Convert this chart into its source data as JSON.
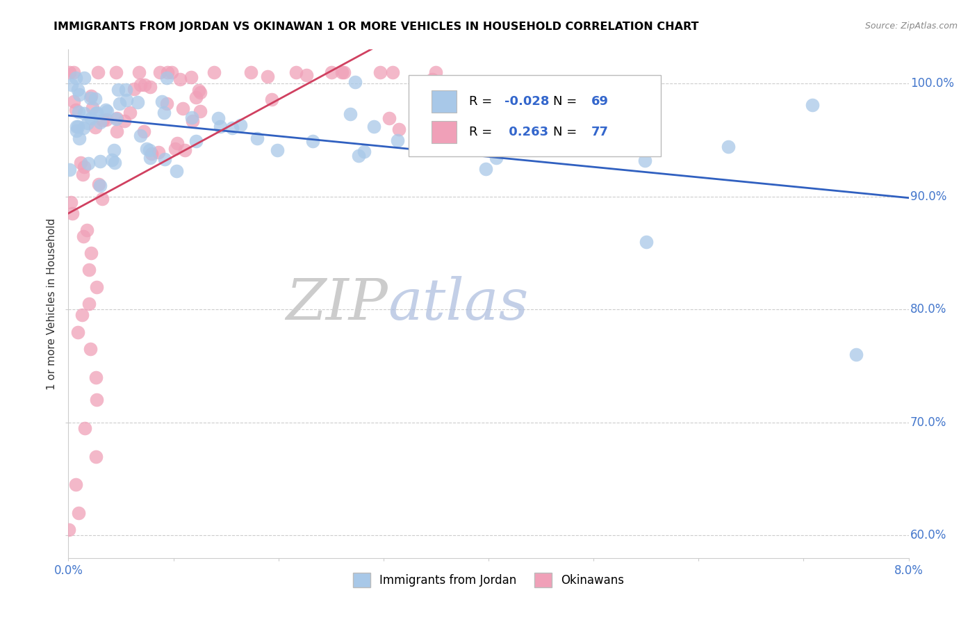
{
  "title": "IMMIGRANTS FROM JORDAN VS OKINAWAN 1 OR MORE VEHICLES IN HOUSEHOLD CORRELATION CHART",
  "source": "Source: ZipAtlas.com",
  "ylabel": "1 or more Vehicles in Household",
  "legend_jordan": "Immigrants from Jordan",
  "legend_okinawan": "Okinawans",
  "R_jordan": -0.028,
  "N_jordan": 69,
  "R_okinawan": 0.263,
  "N_okinawan": 77,
  "jordan_color": "#a8c8e8",
  "okinawan_color": "#f0a0b8",
  "trendline_jordan_color": "#3060c0",
  "trendline_okinawan_color": "#d04060",
  "watermark_zip": "ZIP",
  "watermark_atlas": "atlas",
  "xlim": [
    0,
    8.0
  ],
  "ylim": [
    58,
    103
  ],
  "y_ticks": [
    60,
    70,
    80,
    90,
    100
  ],
  "y_tick_labels": [
    "60.0%",
    "70.0%",
    "80.0%",
    "90.0%",
    "100.0%"
  ],
  "x_tick_labels_left": "0.0%",
  "x_tick_labels_right": "8.0%"
}
